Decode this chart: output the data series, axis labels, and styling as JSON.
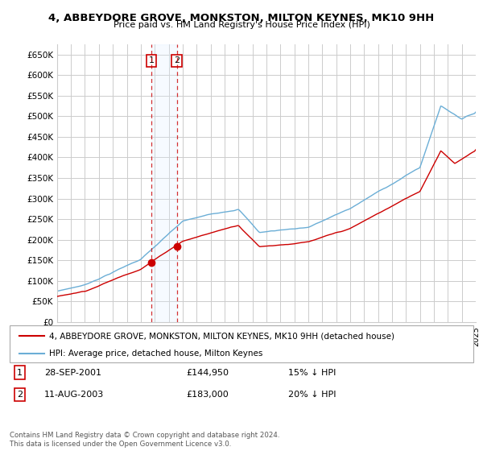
{
  "title": "4, ABBEYDORE GROVE, MONKSTON, MILTON KEYNES, MK10 9HH",
  "subtitle": "Price paid vs. HM Land Registry's House Price Index (HPI)",
  "ylabel_ticks": [
    "£0",
    "£50K",
    "£100K",
    "£150K",
    "£200K",
    "£250K",
    "£300K",
    "£350K",
    "£400K",
    "£450K",
    "£500K",
    "£550K",
    "£600K",
    "£650K"
  ],
  "ylim": [
    0,
    675000
  ],
  "yticks": [
    0,
    50000,
    100000,
    150000,
    200000,
    250000,
    300000,
    350000,
    400000,
    450000,
    500000,
    550000,
    600000,
    650000
  ],
  "hpi_color": "#6baed6",
  "price_color": "#cc0000",
  "sale1_year": 2001.75,
  "sale1_price": 144950,
  "sale1_date": "28-SEP-2001",
  "sale1_label": "15% ↓ HPI",
  "sale2_year": 2003.583,
  "sale2_price": 183000,
  "sale2_date": "11-AUG-2003",
  "sale2_label": "20% ↓ HPI",
  "legend_line1": "4, ABBEYDORE GROVE, MONKSTON, MILTON KEYNES, MK10 9HH (detached house)",
  "legend_line2": "HPI: Average price, detached house, Milton Keynes",
  "footer": "Contains HM Land Registry data © Crown copyright and database right 2024.\nThis data is licensed under the Open Government Licence v3.0.",
  "background_color": "#ffffff",
  "grid_color": "#cccccc",
  "span_color": "#ddeeff"
}
